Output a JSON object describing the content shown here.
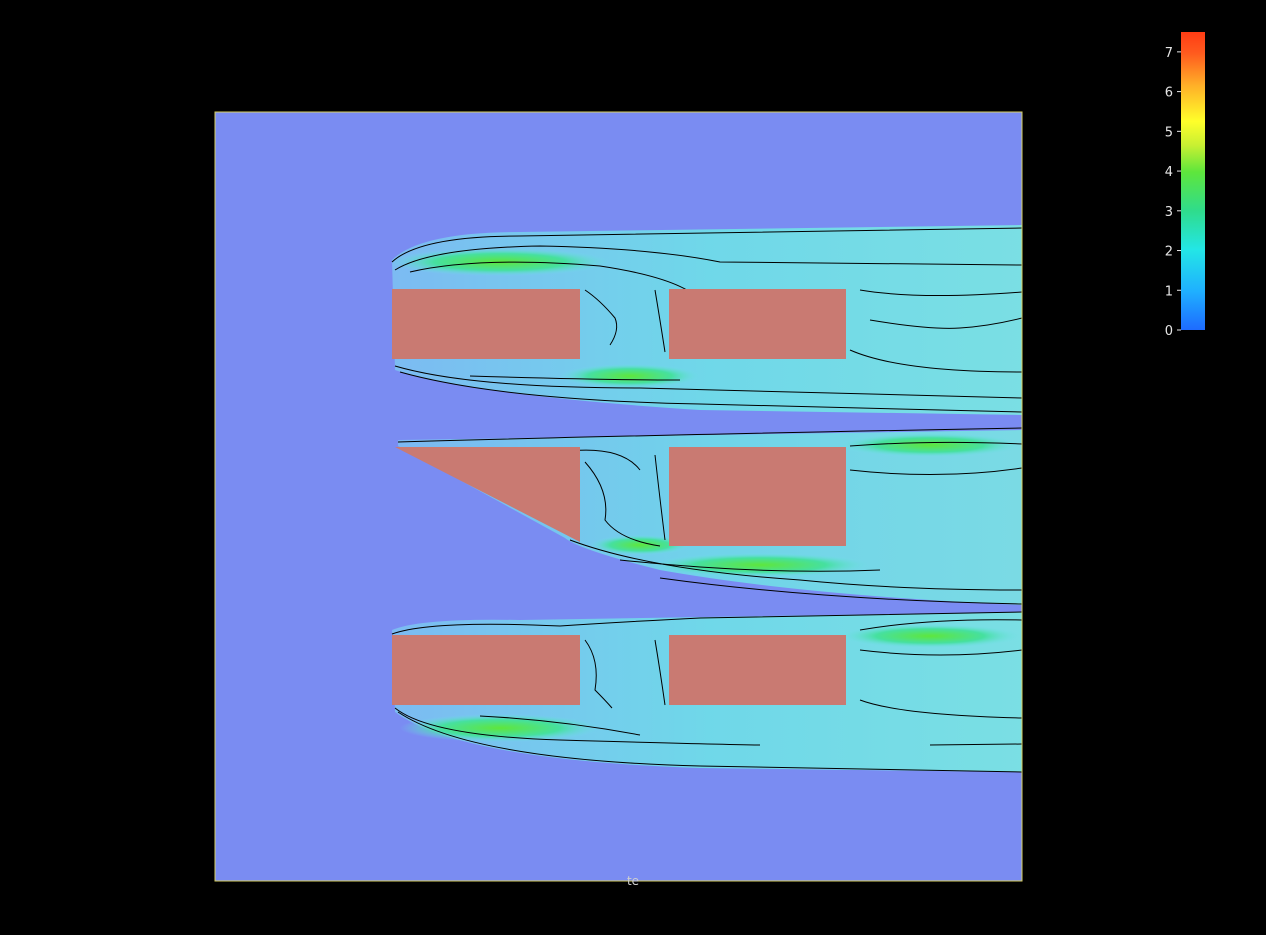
{
  "chart_data": {
    "type": "heatmap",
    "title": "",
    "xlabel": "te",
    "ylabel": "",
    "grid": false,
    "colorbar": {
      "range": [
        0,
        7.5
      ],
      "ticks": [
        0,
        1,
        2,
        3,
        4,
        5,
        6,
        7
      ],
      "colors": [
        "#1e6bff",
        "#1fb0ff",
        "#23e6e6",
        "#2fdc8c",
        "#5ee63c",
        "#c8f032",
        "#ffff2a",
        "#ffb028",
        "#ff5a1e",
        "#ff3c14"
      ],
      "placement": "top-right"
    },
    "colors": {
      "background": "#000000",
      "field": "#7a8cf2",
      "obstacle": "#c97a72",
      "contour": "#000000",
      "frame": "#d8d060"
    }
  }
}
